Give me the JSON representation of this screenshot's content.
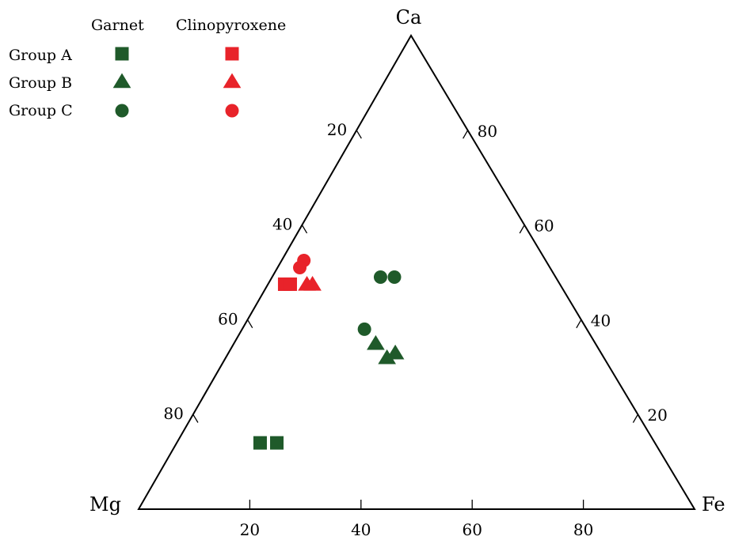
{
  "chart_data": {
    "type": "scatter",
    "subtype": "ternary",
    "title": "",
    "vertices": {
      "top": "Ca",
      "left": "Mg",
      "right": "Fe"
    },
    "axes": {
      "bottom": {
        "component": "Fe",
        "ticks": [
          20,
          40,
          60,
          80
        ]
      },
      "left": {
        "component": "Mg",
        "ticks": [
          20,
          40,
          60,
          80
        ]
      },
      "right": {
        "component": "Ca",
        "ticks": [
          20,
          40,
          60,
          80
        ]
      }
    },
    "range": [
      0,
      100
    ],
    "grid": false,
    "legend": {
      "placement": "top-left",
      "column_headers": [
        "Garnet",
        "Clinopyroxene"
      ],
      "rows": [
        "Group A",
        "Group B",
        "Group C"
      ]
    },
    "series": [
      {
        "mineral": "Garnet",
        "group": "Group A",
        "marker": "square",
        "color": "#1f5a2a",
        "points": [
          {
            "Ca": 14,
            "Mg": 71,
            "Fe": 15
          },
          {
            "Ca": 14,
            "Mg": 68,
            "Fe": 18
          }
        ]
      },
      {
        "mineral": "Garnet",
        "group": "Group B",
        "marker": "triangle",
        "color": "#1f5a2a",
        "points": [
          {
            "Ca": 35,
            "Mg": 39.5,
            "Fe": 25.5
          },
          {
            "Ca": 32,
            "Mg": 39,
            "Fe": 29
          },
          {
            "Ca": 33,
            "Mg": 37,
            "Fe": 30
          }
        ]
      },
      {
        "mineral": "Garnet",
        "group": "Group C",
        "marker": "circle",
        "color": "#1f5a2a",
        "points": [
          {
            "Ca": 49,
            "Mg": 31.5,
            "Fe": 19.5
          },
          {
            "Ca": 49,
            "Mg": 29,
            "Fe": 22
          },
          {
            "Ca": 38,
            "Mg": 40,
            "Fe": 22
          }
        ]
      },
      {
        "mineral": "Clinopyroxene",
        "group": "Group A",
        "marker": "square",
        "color": "#e8232a",
        "points": [
          {
            "Ca": 47.5,
            "Mg": 49.5,
            "Fe": 3
          },
          {
            "Ca": 47.5,
            "Mg": 48.5,
            "Fe": 4
          }
        ]
      },
      {
        "mineral": "Clinopyroxene",
        "group": "Group B",
        "marker": "triangle",
        "color": "#e8232a",
        "points": [
          {
            "Ca": 47.5,
            "Mg": 45.5,
            "Fe": 7
          },
          {
            "Ca": 47.5,
            "Mg": 44.5,
            "Fe": 8
          }
        ]
      },
      {
        "mineral": "Clinopyroxene",
        "group": "Group C",
        "marker": "circle",
        "color": "#e8232a",
        "points": [
          {
            "Ca": 52.5,
            "Mg": 43.5,
            "Fe": 4
          },
          {
            "Ca": 51,
            "Mg": 45,
            "Fe": 4
          }
        ]
      }
    ]
  }
}
